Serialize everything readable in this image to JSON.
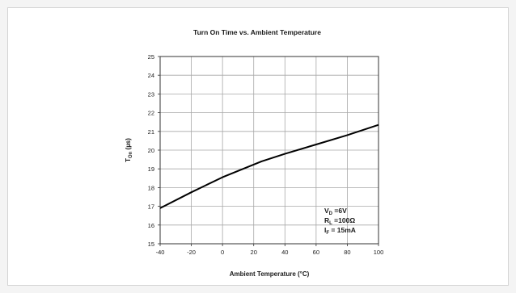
{
  "chart_data": {
    "type": "line",
    "title": "Turn On Time vs. Ambient Temperature",
    "xlabel": "Ambient Temperature (°C)",
    "ylabel": {
      "main": "T",
      "sub": "On",
      "unit": " (µs)"
    },
    "xlim": [
      -40,
      100
    ],
    "ylim": [
      15,
      25
    ],
    "xticks": [
      -40,
      -20,
      0,
      20,
      40,
      60,
      80,
      100
    ],
    "yticks": [
      15,
      16,
      17,
      18,
      19,
      20,
      21,
      22,
      23,
      24,
      25
    ],
    "grid": true,
    "series": [
      {
        "x": [
          -40,
          -20,
          0,
          25,
          40,
          60,
          80,
          100
        ],
        "y": [
          16.9,
          17.75,
          18.55,
          19.4,
          19.8,
          20.3,
          20.8,
          21.35
        ]
      }
    ],
    "annotations": [
      {
        "main": "V",
        "sub": "D",
        "rest": " =6V"
      },
      {
        "main": "R",
        "sub": "L",
        "rest": " =100Ω"
      },
      {
        "main": "I",
        "sub": "F",
        "rest": " = 15mA"
      }
    ],
    "colors": {
      "line": "#000000",
      "grid": "#a8a8a8",
      "axis": "#333333"
    }
  }
}
